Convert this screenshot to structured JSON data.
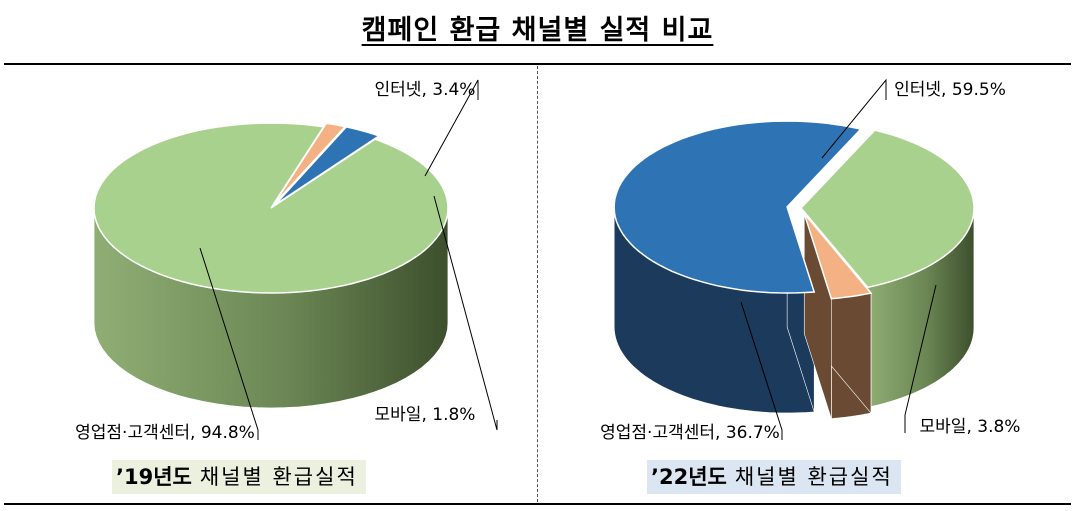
{
  "title": "캠페인 환급 채널별 실적 비교",
  "colors": {
    "internet": "#2e74b5",
    "internet_side": "#1b3a5c",
    "mobile": "#f4b183",
    "mobile_side": "#6b4a33",
    "branch": "#a9d18e",
    "branch_side_light": "#8fae74",
    "branch_side_dark": "#3d4f2d"
  },
  "chart_data": [
    {
      "type": "pie",
      "title": "",
      "caption": {
        "year": "’19년도",
        "text": "채널별 환급실적"
      },
      "categories": [
        "인터넷",
        "모바일",
        "영업점·고객센터"
      ],
      "values": [
        3.4,
        1.8,
        94.8
      ],
      "labels": [
        "인터넷, 3.4%",
        "모바일, 1.8%",
        "영업점·고객센터, 94.8%"
      ],
      "exploded": "인터넷, 모바일",
      "style": "3D"
    },
    {
      "type": "pie",
      "title": "",
      "caption": {
        "year": "’22년도",
        "text": "채널별 환급실적"
      },
      "categories": [
        "인터넷",
        "모바일",
        "영업점·고객센터"
      ],
      "values": [
        59.5,
        3.8,
        36.7
      ],
      "labels": [
        "인터넷, 59.5%",
        "모바일, 3.8%",
        "영업점·고객센터, 36.7%"
      ],
      "exploded": "인터넷, 모바일",
      "style": "3D"
    }
  ]
}
